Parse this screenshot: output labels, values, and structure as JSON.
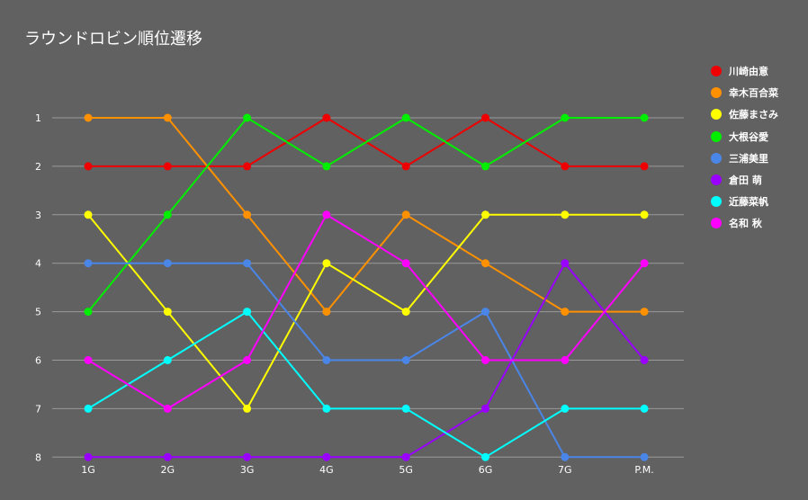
{
  "chart_data": {
    "type": "line",
    "title": "ラウンドロビン順位遷移",
    "categories": [
      "1G",
      "2G",
      "3G",
      "4G",
      "5G",
      "6G",
      "7G",
      "P.M."
    ],
    "yticks": [
      "1",
      "2",
      "3",
      "4",
      "5",
      "6",
      "7",
      "8"
    ],
    "ylim": [
      1,
      8
    ],
    "y_inverted": true,
    "grid": true,
    "legend_position": "right",
    "series": [
      {
        "name": "川崎由意",
        "color": "#ee0000",
        "values": [
          2,
          2,
          2,
          1,
          2,
          1,
          2,
          2
        ]
      },
      {
        "name": "幸木百合菜",
        "color": "#ff9100",
        "values": [
          1,
          1,
          3,
          5,
          3,
          4,
          5,
          5
        ]
      },
      {
        "name": "佐藤まさみ",
        "color": "#ffff00",
        "values": [
          3,
          5,
          7,
          4,
          5,
          3,
          3,
          3
        ]
      },
      {
        "name": "大根谷愛",
        "color": "#00ee00",
        "values": [
          5,
          3,
          1,
          2,
          1,
          2,
          1,
          1
        ]
      },
      {
        "name": "三浦美里",
        "color": "#4a86e8",
        "values": [
          4,
          4,
          4,
          6,
          6,
          5,
          8,
          8
        ]
      },
      {
        "name": "倉田 萌",
        "color": "#9900ff",
        "values": [
          8,
          8,
          8,
          8,
          8,
          7,
          4,
          6
        ]
      },
      {
        "name": "近藤菜帆",
        "color": "#00ffff",
        "values": [
          7,
          6,
          5,
          7,
          7,
          8,
          7,
          7
        ]
      },
      {
        "name": "名和 秋",
        "color": "#ff00ff",
        "values": [
          6,
          7,
          6,
          3,
          4,
          6,
          6,
          4
        ]
      }
    ]
  }
}
